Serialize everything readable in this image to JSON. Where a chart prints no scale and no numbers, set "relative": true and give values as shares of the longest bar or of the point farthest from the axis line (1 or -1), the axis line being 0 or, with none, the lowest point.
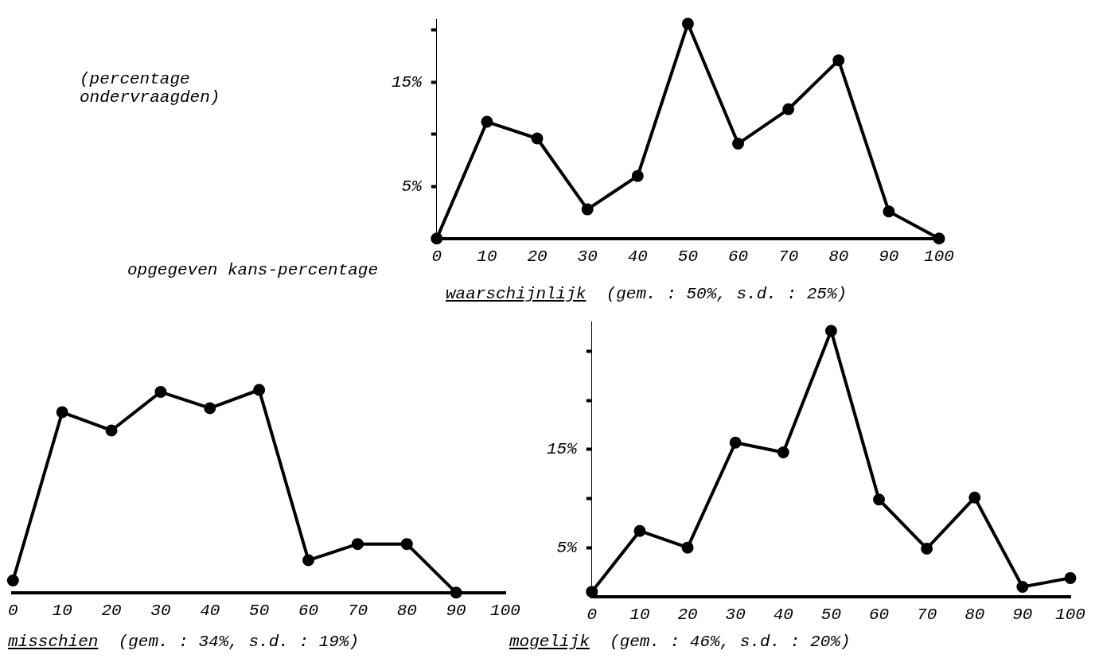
{
  "chart_data": [
    {
      "type": "line",
      "title": "waarschijnlijk (gem. : 50%, s.d. : 25%)",
      "ylabel": "(percentage ondervraagden)",
      "xlabel": "opgegeven kans-percentage",
      "x": [
        0,
        10,
        20,
        30,
        40,
        50,
        60,
        70,
        80,
        90,
        100
      ],
      "series": [
        {
          "color": "#000000",
          "values": [
            0,
            11.2,
            9.6,
            2.8,
            6,
            20.6,
            9.1,
            12.4,
            17.1,
            2.6,
            0
          ]
        }
      ],
      "xlim": [
        0,
        100
      ],
      "xticks": [
        0,
        10,
        20,
        30,
        40,
        50,
        60,
        70,
        80,
        90,
        100
      ],
      "ylim": [
        0,
        21
      ],
      "yticks": [
        {
          "value": 5,
          "label": "5%"
        },
        {
          "value": 10,
          "label": null
        },
        {
          "value": 15,
          "label": "15%"
        },
        {
          "value": 20,
          "label": null
        }
      ],
      "marker": "circle",
      "line_style": "solid",
      "legend": false
    },
    {
      "type": "line",
      "title": "misschien (gem. : 34%, s.d. : 19%)",
      "relative": true,
      "x": [
        0,
        10,
        20,
        30,
        40,
        50,
        60,
        70,
        80,
        90
      ],
      "series": [
        {
          "color": "#000000",
          "values": [
            0.06,
            0.89,
            0.8,
            0.99,
            0.91,
            1,
            0.16,
            0.24,
            0.24,
            0
          ]
        }
      ],
      "xlim": [
        0,
        100
      ],
      "xticks": [
        0,
        10,
        20,
        30,
        40,
        50,
        60,
        70,
        80,
        90,
        100
      ],
      "marker": "circle",
      "line_style": "solid",
      "legend": false
    },
    {
      "type": "line",
      "title": "mogelijk (gem. : 46%, s.d. : 20%)",
      "x": [
        0,
        10,
        20,
        30,
        40,
        50,
        60,
        70,
        80,
        90,
        100
      ],
      "series": [
        {
          "color": "#000000",
          "values": [
            0.5,
            6.7,
            5,
            15.7,
            14.7,
            27.1,
            9.9,
            4.9,
            10.1,
            1,
            1.9
          ]
        }
      ],
      "xlim": [
        0,
        100
      ],
      "xticks": [
        0,
        10,
        20,
        30,
        40,
        50,
        60,
        70,
        80,
        90,
        100
      ],
      "ylim": [
        0,
        28
      ],
      "yticks": [
        {
          "value": 5,
          "label": "5%"
        },
        {
          "value": 10,
          "label": null
        },
        {
          "value": 15,
          "label": "15%"
        },
        {
          "value": 20,
          "label": null
        },
        {
          "value": 25,
          "label": null
        }
      ],
      "marker": "circle",
      "line_style": "solid",
      "legend": false
    }
  ]
}
